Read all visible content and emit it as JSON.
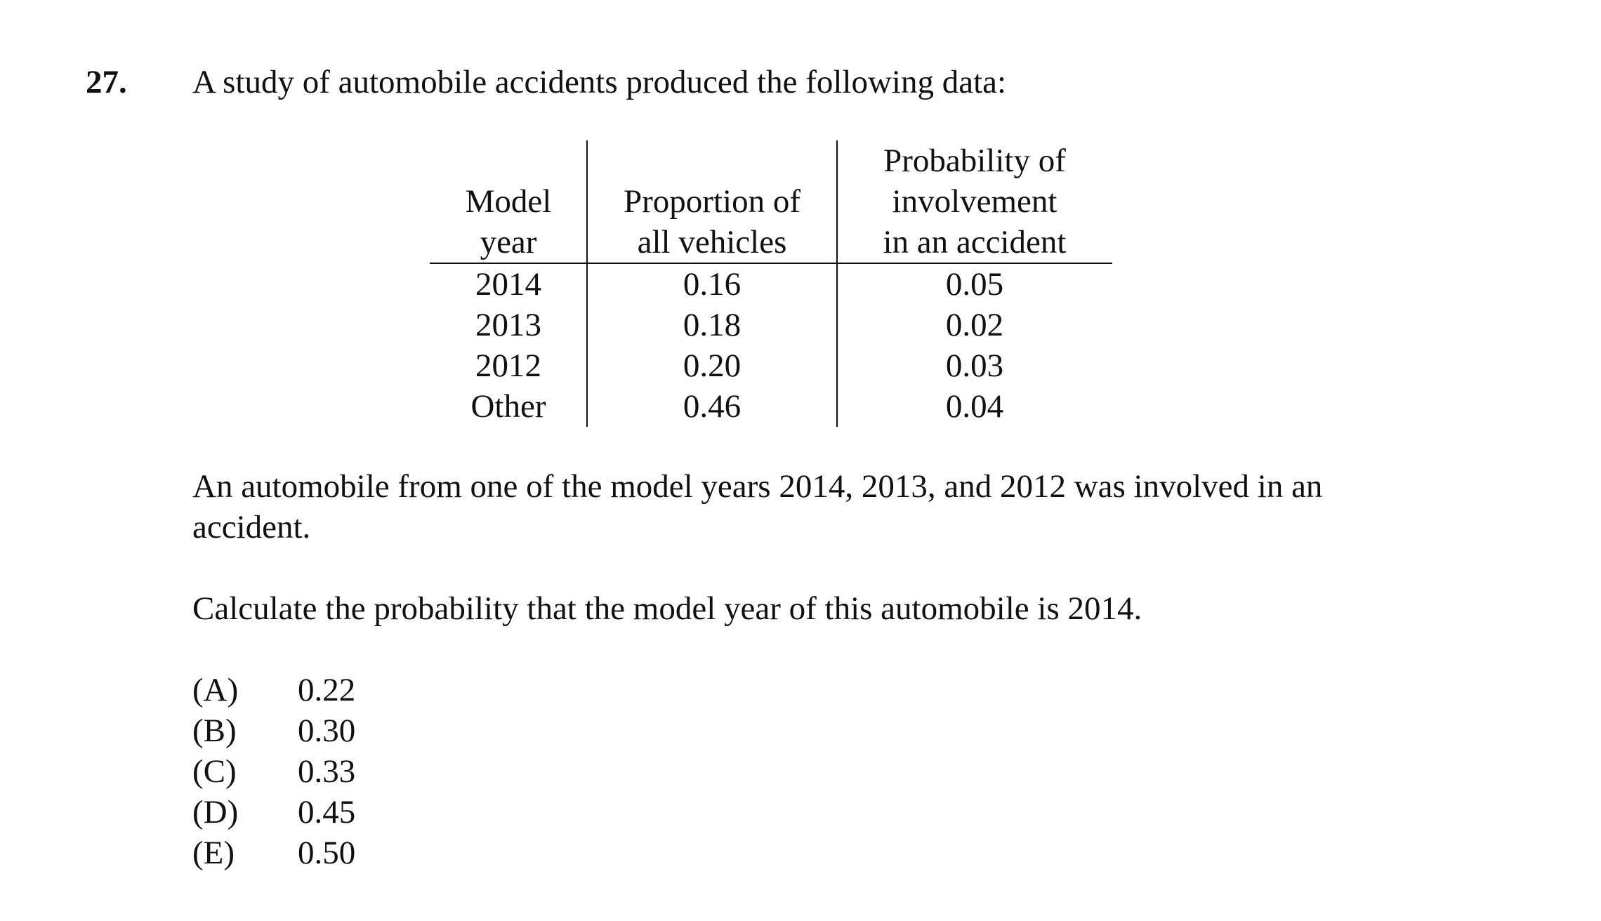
{
  "question": {
    "number": "27.",
    "intro": "A study of automobile accidents produced the following data:",
    "table": {
      "headers": {
        "year": [
          "Model",
          "year"
        ],
        "proportion": [
          "Proportion of",
          "all vehicles"
        ],
        "probability": [
          "Probability of",
          "involvement",
          "in an accident"
        ]
      },
      "rows": [
        {
          "year": "2014",
          "proportion": "0.16",
          "probability": "0.05"
        },
        {
          "year": "2013",
          "proportion": "0.18",
          "probability": "0.02"
        },
        {
          "year": "2012",
          "proportion": "0.20",
          "probability": "0.03"
        },
        {
          "year": "Other",
          "proportion": "0.46",
          "probability": "0.04"
        }
      ]
    },
    "paragraph_1": "An automobile from one of the model years 2014, 2013, and 2012 was involved in an accident.",
    "paragraph_2": "Calculate the probability that the model year of this automobile is 2014.",
    "choices": [
      {
        "letter": "(A)",
        "value": "0.22"
      },
      {
        "letter": "(B)",
        "value": "0.30"
      },
      {
        "letter": "(C)",
        "value": "0.33"
      },
      {
        "letter": "(D)",
        "value": "0.45"
      },
      {
        "letter": "(E)",
        "value": "0.50"
      }
    ]
  }
}
